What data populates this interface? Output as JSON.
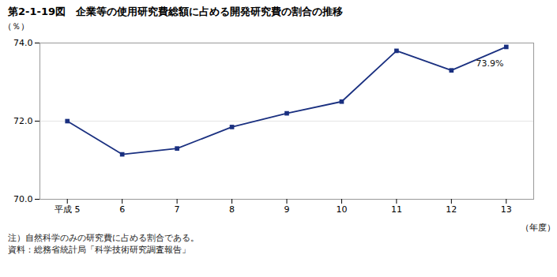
{
  "chart_data": {
    "type": "line",
    "title": "第2-1-19図　企業等の使用研究費総額に占める開発研究費の割合の推移",
    "x": [
      5,
      6,
      7,
      8,
      9,
      10,
      11,
      12,
      13
    ],
    "values": [
      72.0,
      71.15,
      71.3,
      71.85,
      72.2,
      72.5,
      73.8,
      73.3,
      73.9
    ],
    "color": "#1a3080",
    "marker": "square",
    "xlim": [
      4.5,
      13.5
    ],
    "xticks": [
      {
        "value": 5,
        "label": "平成 5"
      },
      6,
      7,
      8,
      9,
      10,
      11,
      12,
      13
    ],
    "ylim": [
      70.0,
      74.0
    ],
    "yticks": [
      {
        "value": 70.0,
        "label": "70.0"
      },
      {
        "value": 72.0,
        "label": "72.0"
      },
      {
        "value": 74.0,
        "label": "74.0"
      }
    ],
    "x_label": "（年度）",
    "y_label": "（％）",
    "grid": true,
    "annotations": [
      {
        "text": "73.9%",
        "x": 12.45,
        "y": 73.57
      }
    ],
    "notes": [
      "注）自然科学のみの研究費に占める割合である。",
      "資料：総務省統計局「科学技術研究調査報告」"
    ]
  }
}
